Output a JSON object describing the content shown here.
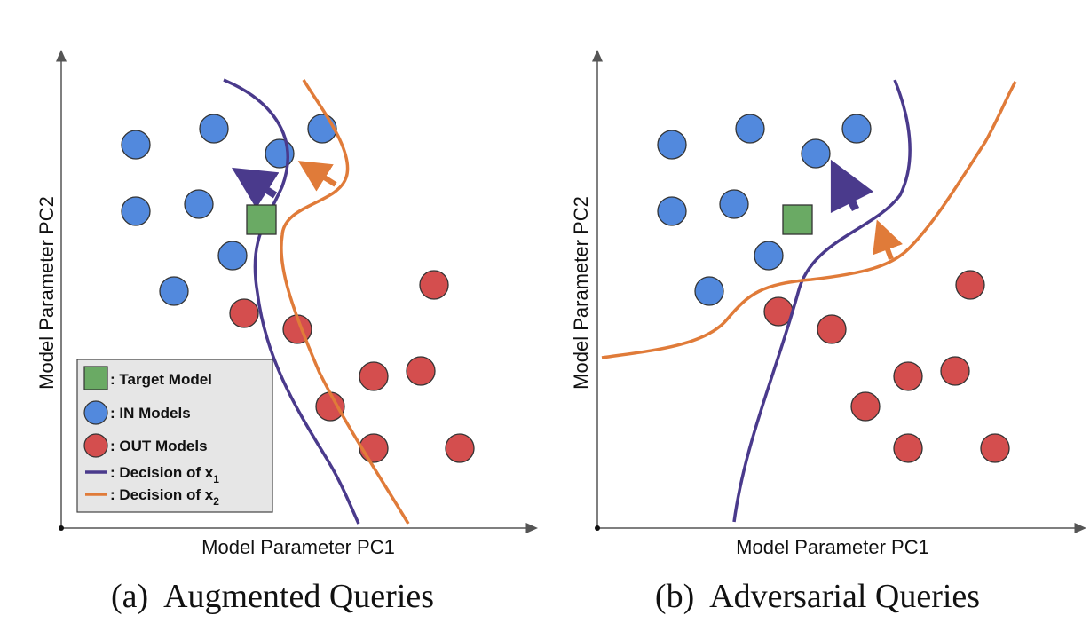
{
  "axes": {
    "x_label": "Model Parameter PC1",
    "y_label": "Model Parameter PC2"
  },
  "legend": {
    "items": [
      {
        "marker": "square",
        "color": "#6aaa64",
        "label": ": Target Model"
      },
      {
        "marker": "circle",
        "color": "#5289dd",
        "label": ": IN Models"
      },
      {
        "marker": "circle",
        "color": "#d44e4e",
        "label": ": OUT Models"
      },
      {
        "marker": "line",
        "color": "#4a3a8c",
        "label": ": Decision of x",
        "subscript": "1"
      },
      {
        "marker": "line",
        "color": "#e07b39",
        "label": ": Decision of x",
        "subscript": "2"
      }
    ]
  },
  "panels": [
    {
      "id": "a",
      "caption_prefix": "(a)",
      "caption_title": "Augmented Queries"
    },
    {
      "id": "b",
      "caption_prefix": "(b)",
      "caption_title": "Adversarial Queries"
    }
  ],
  "colors": {
    "in_model": "#5289dd",
    "out_model": "#d44e4e",
    "target_model": "#6aaa64",
    "decision_x1": "#4a3a8c",
    "decision_x2": "#e07b39",
    "legend_bg": "#e6e6e6"
  }
}
